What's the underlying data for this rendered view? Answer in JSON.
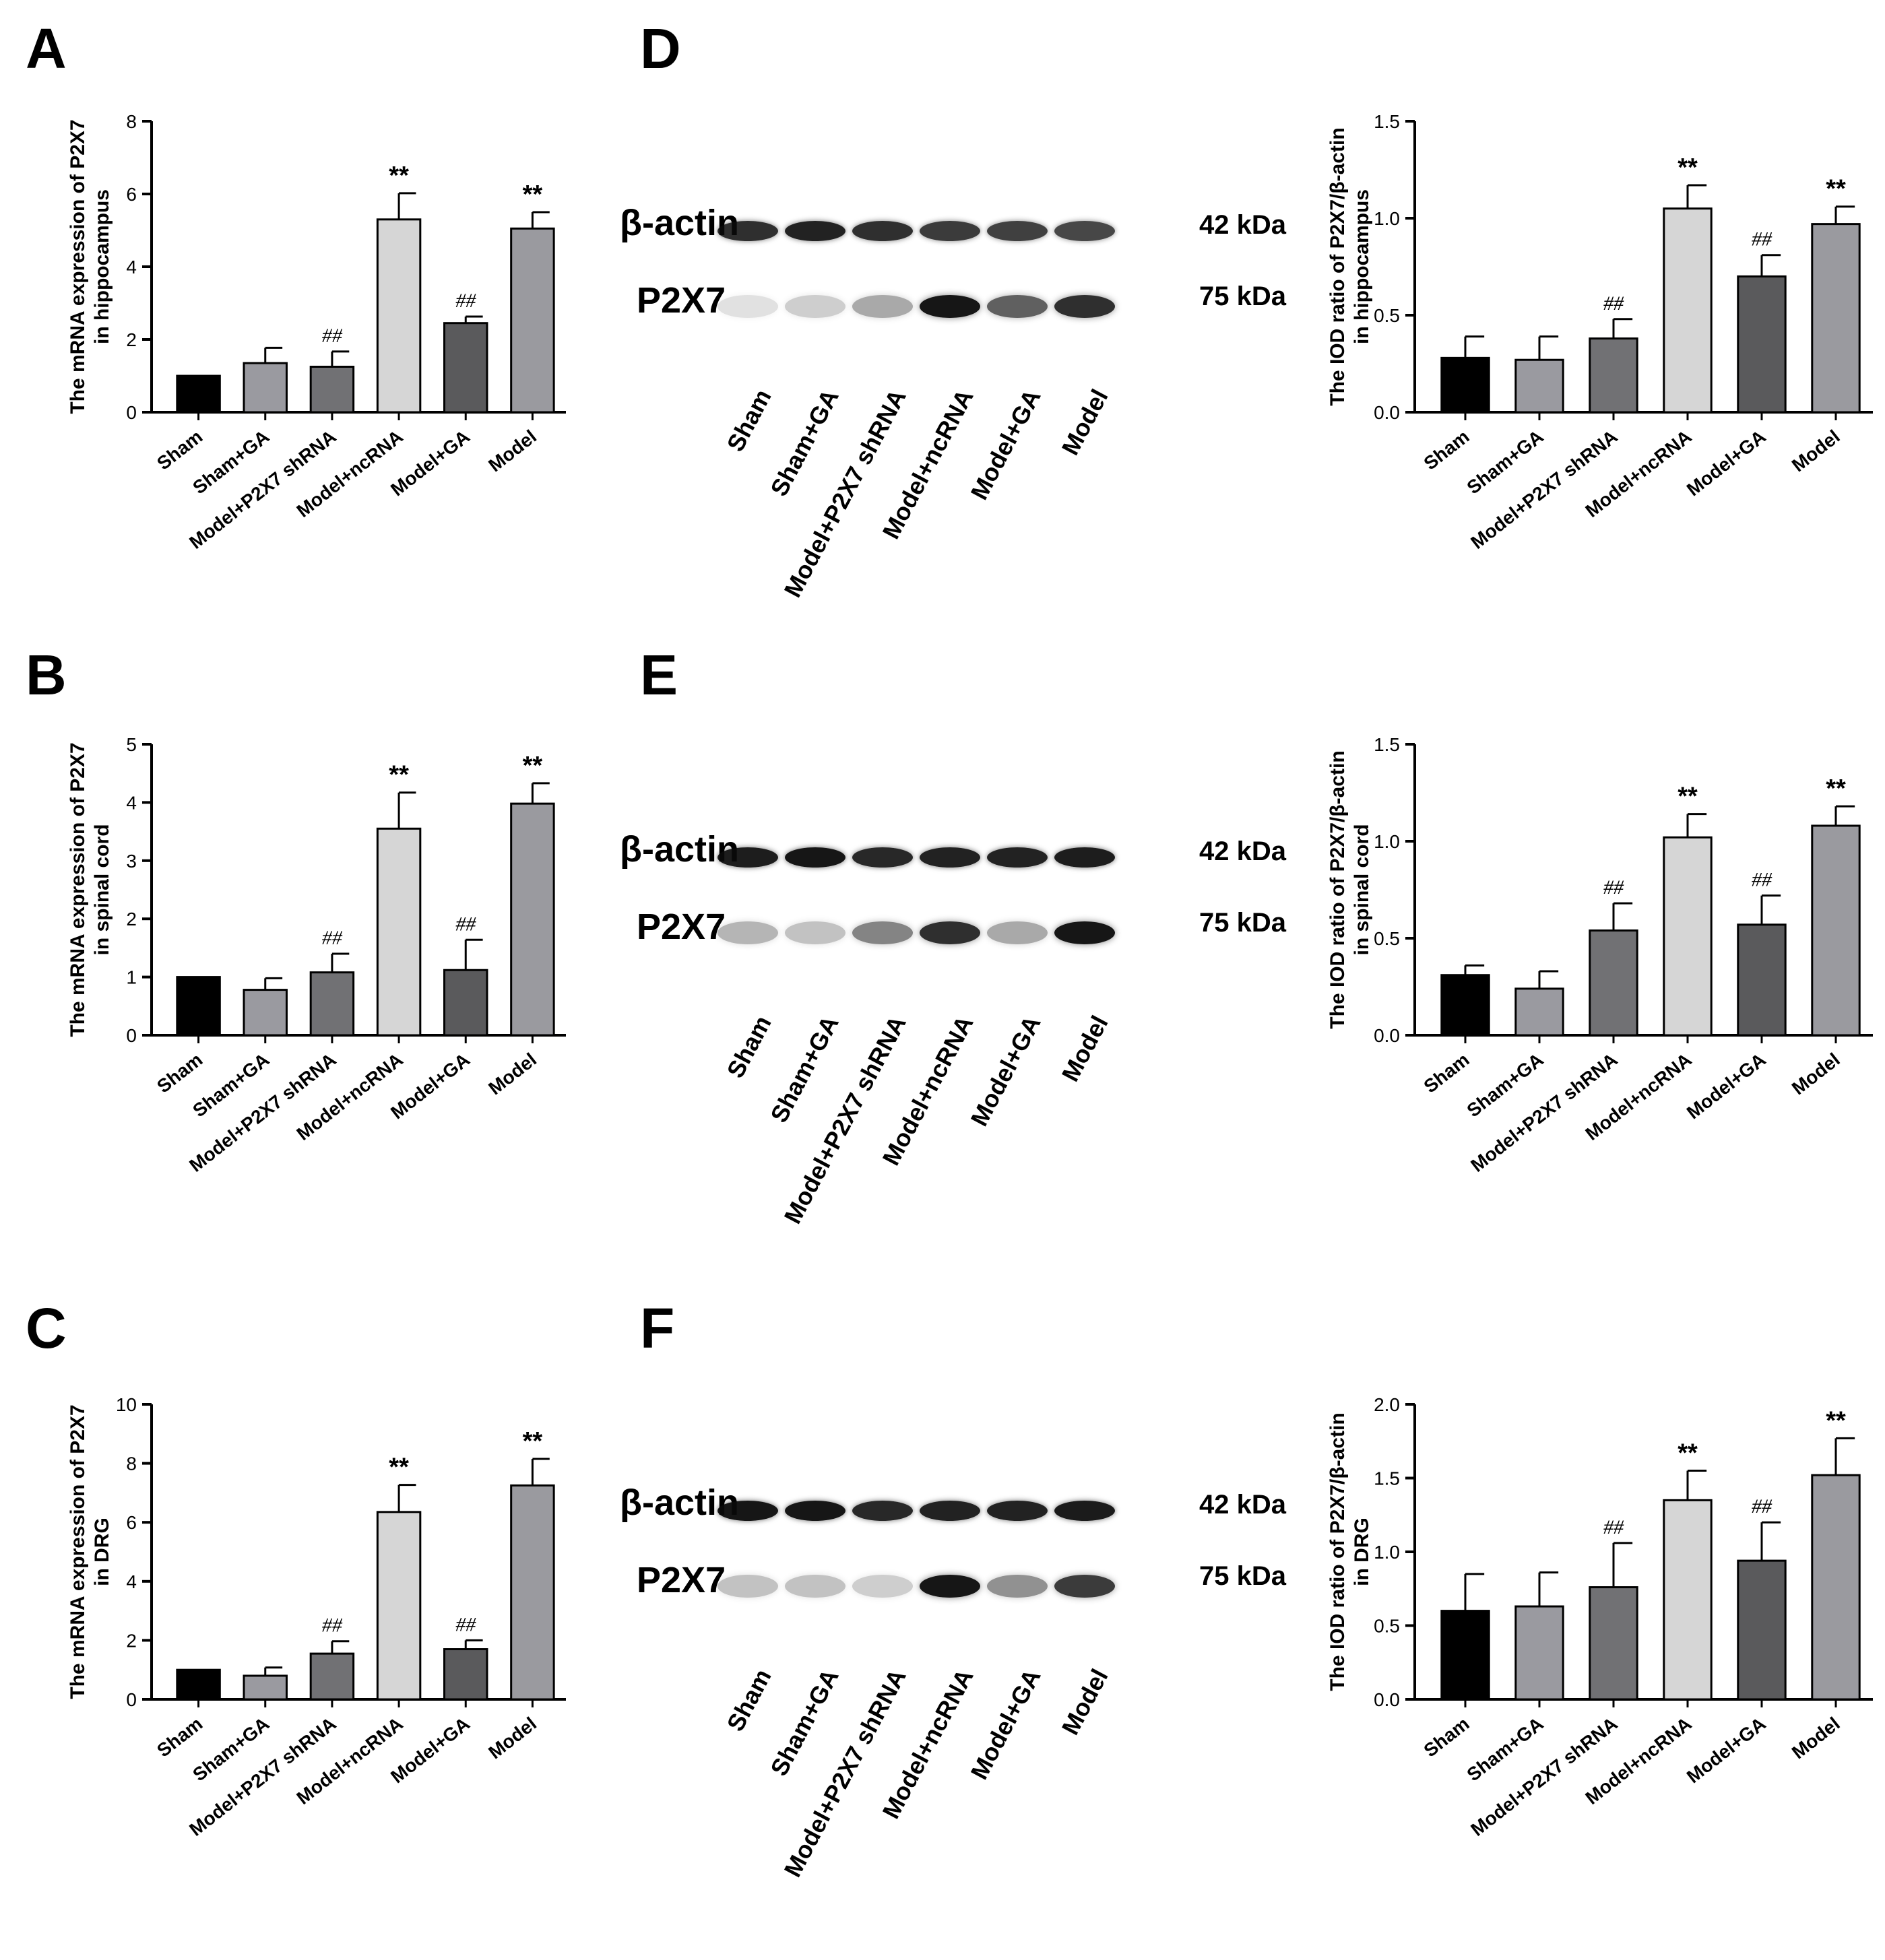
{
  "panels": {
    "A": "A",
    "B": "B",
    "C": "C",
    "D": "D",
    "E": "E",
    "F": "F"
  },
  "groups": [
    "Sham",
    "Sham+GA",
    "Model+P2X7 shRNA",
    "Model+ncRNA",
    "Model+GA",
    "Model"
  ],
  "bar_colors": [
    "#000000",
    "#9a9aa0",
    "#717174",
    "#d6d6d6",
    "#5a5a5c",
    "#9a9a9f"
  ],
  "blots": [
    {
      "panel": "D",
      "row1_label": "β-actin",
      "row1_kda": "42 kDa",
      "row2_label": "P2X7",
      "row2_kda": "75 kDa",
      "lanes": [
        "Sham",
        "Sham+GA",
        "Model+P2X7 shRNA",
        "Model+ncRNA",
        "Model+GA",
        "Model"
      ],
      "actin_intensity": [
        0.85,
        0.9,
        0.85,
        0.8,
        0.78,
        0.75
      ],
      "p2x7_intensity": [
        0.12,
        0.2,
        0.35,
        0.95,
        0.65,
        0.85
      ]
    },
    {
      "panel": "E",
      "row1_label": "β-actin",
      "row1_kda": "42 kDa",
      "row2_label": "P2X7",
      "row2_kda": "75 kDa",
      "lanes": [
        "Sham",
        "Sham+GA",
        "Model+P2X7 shRNA",
        "Model+ncRNA",
        "Model+GA",
        "Model"
      ],
      "actin_intensity": [
        0.92,
        0.95,
        0.88,
        0.9,
        0.9,
        0.92
      ],
      "p2x7_intensity": [
        0.3,
        0.25,
        0.5,
        0.85,
        0.35,
        0.95
      ]
    },
    {
      "panel": "F",
      "row1_label": "β-actin",
      "row1_kda": "42 kDa",
      "row2_label": "P2X7",
      "row2_kda": "75 kDa",
      "lanes": [
        "Sham",
        "Sham+GA",
        "Model+P2X7 shRNA",
        "Model+ncRNA",
        "Model+GA",
        "Model"
      ],
      "actin_intensity": [
        0.95,
        0.95,
        0.88,
        0.9,
        0.9,
        0.93
      ],
      "p2x7_intensity": [
        0.25,
        0.25,
        0.2,
        0.95,
        0.45,
        0.8
      ]
    }
  ],
  "chart_data": [
    {
      "panel": "A",
      "type": "bar",
      "categories": [
        "Sham",
        "Sham+GA",
        "Model+P2X7 shRNA",
        "Model+ncRNA",
        "Model+GA",
        "Model"
      ],
      "values": [
        1.0,
        1.35,
        1.25,
        5.3,
        2.45,
        5.05
      ],
      "errors": [
        0,
        0.42,
        0.42,
        0.72,
        0.18,
        0.45
      ],
      "annotations": [
        "",
        "",
        "##",
        "**",
        "##",
        "**"
      ],
      "ylabel_line1": "The mRNA expression of P2X7",
      "ylabel_line2": "in hippocampus",
      "ylim": [
        0,
        8
      ],
      "yticks": [
        "0",
        "2",
        "4",
        "6",
        "8"
      ]
    },
    {
      "panel": "B",
      "type": "bar",
      "categories": [
        "Sham",
        "Sham+GA",
        "Model+P2X7 shRNA",
        "Model+ncRNA",
        "Model+GA",
        "Model"
      ],
      "values": [
        1.0,
        0.78,
        1.08,
        3.55,
        1.12,
        3.98
      ],
      "errors": [
        0,
        0.2,
        0.32,
        0.62,
        0.52,
        0.35
      ],
      "annotations": [
        "",
        "",
        "##",
        "**",
        "##",
        "**"
      ],
      "ylabel_line1": "The mRNA expression of P2X7",
      "ylabel_line2": "in spinal cord",
      "ylim": [
        0,
        5
      ],
      "yticks": [
        "0",
        "1",
        "2",
        "3",
        "4",
        "5"
      ]
    },
    {
      "panel": "C",
      "type": "bar",
      "categories": [
        "Sham",
        "Sham+GA",
        "Model+P2X7 shRNA",
        "Model+ncRNA",
        "Model+GA",
        "Model"
      ],
      "values": [
        1.0,
        0.8,
        1.55,
        6.35,
        1.7,
        7.25
      ],
      "errors": [
        0,
        0.28,
        0.42,
        0.92,
        0.3,
        0.9
      ],
      "annotations": [
        "",
        "",
        "##",
        "**",
        "##",
        "**"
      ],
      "ylabel_line1": "The mRNA expression of P2X7",
      "ylabel_line2": "in DRG",
      "ylim": [
        0,
        10
      ],
      "yticks": [
        "0",
        "2",
        "4",
        "6",
        "8",
        "10"
      ]
    },
    {
      "panel": "D",
      "type": "bar",
      "categories": [
        "Sham",
        "Sham+GA",
        "Model+P2X7 shRNA",
        "Model+ncRNA",
        "Model+GA",
        "Model"
      ],
      "values": [
        0.28,
        0.27,
        0.38,
        1.05,
        0.7,
        0.97
      ],
      "errors": [
        0.11,
        0.12,
        0.1,
        0.12,
        0.11,
        0.09
      ],
      "annotations": [
        "",
        "",
        "##",
        "**",
        "##",
        "**"
      ],
      "ylabel_line1": "The IOD ratio of P2X7/β-actin",
      "ylabel_line2": "in hippocampus",
      "ylim": [
        0,
        1.5
      ],
      "yticks": [
        "0.0",
        "0.5",
        "1.0",
        "1.5"
      ]
    },
    {
      "panel": "E",
      "type": "bar",
      "categories": [
        "Sham",
        "Sham+GA",
        "Model+P2X7 shRNA",
        "Model+ncRNA",
        "Model+GA",
        "Model"
      ],
      "values": [
        0.31,
        0.24,
        0.54,
        1.02,
        0.57,
        1.08
      ],
      "errors": [
        0.05,
        0.09,
        0.14,
        0.12,
        0.15,
        0.1
      ],
      "annotations": [
        "",
        "",
        "##",
        "**",
        "##",
        "**"
      ],
      "ylabel_line1": "The IOD ratio of P2X7/β-actin",
      "ylabel_line2": "in spinal cord",
      "ylim": [
        0,
        1.5
      ],
      "yticks": [
        "0.0",
        "0.5",
        "1.0",
        "1.5"
      ]
    },
    {
      "panel": "F",
      "type": "bar",
      "categories": [
        "Sham",
        "Sham+GA",
        "Model+P2X7 shRNA",
        "Model+ncRNA",
        "Model+GA",
        "Model"
      ],
      "values": [
        0.6,
        0.63,
        0.76,
        1.35,
        0.94,
        1.52
      ],
      "errors": [
        0.25,
        0.23,
        0.3,
        0.2,
        0.26,
        0.25
      ],
      "annotations": [
        "",
        "",
        "##",
        "**",
        "##",
        "**"
      ],
      "ylabel_line1": "The IOD ratio of P2X7/β-actin",
      "ylabel_line2": "in DRG",
      "ylim": [
        0,
        2.0
      ],
      "yticks": [
        "0.0",
        "0.5",
        "1.0",
        "1.5",
        "2.0"
      ]
    }
  ]
}
